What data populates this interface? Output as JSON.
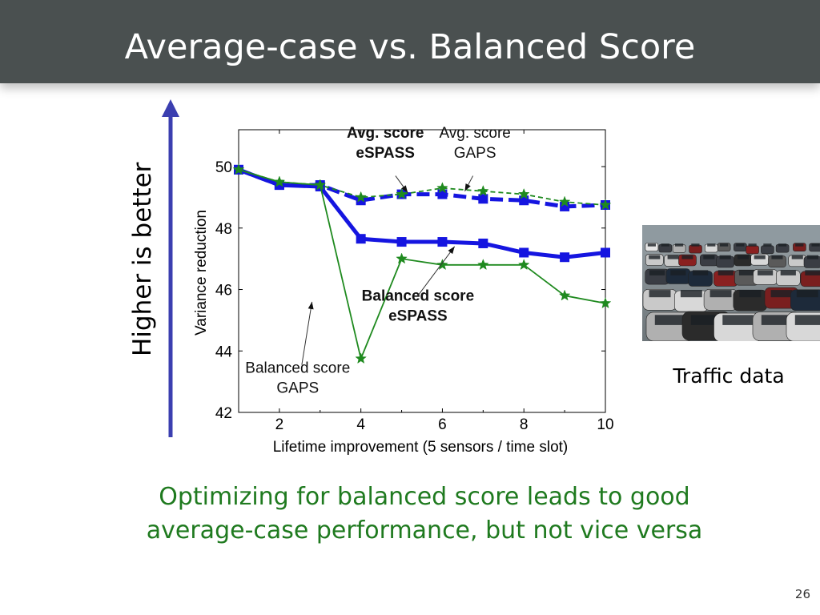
{
  "slide": {
    "title": "Average-case vs. Balanced Score",
    "arrow_label": "Higher is better",
    "photo_caption": "Traffic data",
    "conclusion_line1": "Optimizing for balanced score leads to good",
    "conclusion_line2": "average-case performance, but not vice versa",
    "slide_number": "26"
  },
  "colors": {
    "title_bar": "#4a5050",
    "arrow": "#3b3fb0",
    "espass": "#1515e0",
    "gaps": "#1f8a1f",
    "conclusion": "#1f7a1f"
  },
  "chart_data": {
    "type": "line",
    "title": "",
    "xlabel": "Lifetime improvement (5 sensors / time slot)",
    "ylabel": "Variance reduction",
    "xlim": [
      1,
      10
    ],
    "ylim": [
      42,
      51.2
    ],
    "xticks": [
      2,
      4,
      6,
      8,
      10
    ],
    "yticks": [
      42,
      44,
      46,
      48,
      50
    ],
    "grid": false,
    "x": [
      1,
      2,
      3,
      4,
      5,
      6,
      7,
      8,
      9,
      10
    ],
    "series": [
      {
        "name": "Avg. score eSPASS",
        "style": "thick-dashed-square",
        "color": "#1515e0",
        "values": [
          49.9,
          49.4,
          49.4,
          48.9,
          49.1,
          49.1,
          48.95,
          48.9,
          48.7,
          48.75
        ]
      },
      {
        "name": "Avg. score GAPS",
        "style": "thin-dashed-star",
        "color": "#1f8a1f",
        "values": [
          49.9,
          49.5,
          49.4,
          49.0,
          49.1,
          49.3,
          49.2,
          49.1,
          48.85,
          48.75
        ]
      },
      {
        "name": "Balanced score eSPASS",
        "style": "thick-solid-square",
        "color": "#1515e0",
        "values": [
          49.9,
          49.4,
          49.35,
          47.65,
          47.55,
          47.55,
          47.5,
          47.2,
          47.05,
          47.2
        ]
      },
      {
        "name": "Balanced score GAPS",
        "style": "thin-solid-star",
        "color": "#1f8a1f",
        "values": [
          49.9,
          49.5,
          49.4,
          43.75,
          47.0,
          46.8,
          46.8,
          46.8,
          45.8,
          45.55
        ]
      }
    ],
    "annotations": [
      {
        "series": "Avg. score eSPASS",
        "line1": "Avg. score",
        "line2": "eSPASS",
        "bold": true,
        "x": 4.6,
        "y": 50.65,
        "ax": 4.85,
        "ay": 49.7,
        "tx": 5.15,
        "ty": 49.15
      },
      {
        "series": "Avg. score GAPS",
        "line1": "Avg. score",
        "line2": "GAPS",
        "bold": false,
        "x": 6.8,
        "y": 50.65,
        "ax": 6.75,
        "ay": 49.7,
        "tx": 6.55,
        "ty": 49.2
      },
      {
        "series": "Balanced score eSPASS",
        "line1": "Balanced score",
        "line2": "eSPASS",
        "bold": true,
        "x": 5.4,
        "y": 45.35,
        "ax": 5.4,
        "ay": 45.8,
        "tx": 6.3,
        "ty": 47.4
      },
      {
        "series": "Balanced score GAPS",
        "line1": "Balanced score",
        "line2": "GAPS",
        "bold": false,
        "x": 2.45,
        "y": 43.0,
        "ax": 2.55,
        "ay": 43.55,
        "tx": 2.8,
        "ty": 45.6
      }
    ]
  }
}
